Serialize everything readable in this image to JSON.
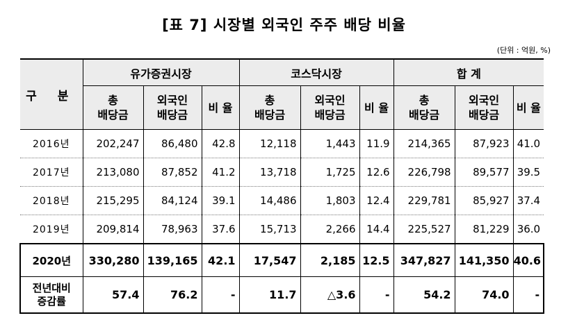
{
  "title": "[표 7] 시장별 외국인 주주 배당 비율",
  "unit": "(단위 : 억원, %)",
  "header": {
    "gubun": "구 분",
    "groups": [
      "유가증권시장",
      "코스닥시장",
      "합 계"
    ],
    "sub_total": [
      "총",
      "배당금"
    ],
    "sub_foreign": [
      "외국인",
      "배당금"
    ],
    "sub_ratio": "비 율"
  },
  "rows": [
    {
      "label": "2016년",
      "v": [
        "202,247",
        "86,480",
        "42.8",
        "12,118",
        "1,443",
        "11.9",
        "214,365",
        "87,923",
        "41.0"
      ]
    },
    {
      "label": "2017년",
      "v": [
        "213,080",
        "87,852",
        "41.2",
        "13,718",
        "1,725",
        "12.6",
        "226,798",
        "89,577",
        "39.5"
      ]
    },
    {
      "label": "2018년",
      "v": [
        "215,295",
        "84,124",
        "39.1",
        "14,486",
        "1,803",
        "12.4",
        "229,781",
        "85,927",
        "37.4"
      ]
    },
    {
      "label": "2019년",
      "v": [
        "209,814",
        "78,963",
        "37.6",
        "15,713",
        "2,266",
        "14.4",
        "225,527",
        "81,229",
        "36.0"
      ]
    },
    {
      "label": "2020년",
      "v": [
        "330,280",
        "139,165",
        "42.1",
        "17,547",
        "2,185",
        "12.5",
        "347,827",
        "141,350",
        "40.6"
      ]
    },
    {
      "label": [
        "전년대비",
        "증감률"
      ],
      "v": [
        "57.4",
        "76.2",
        "-",
        "11.7",
        "△3.6",
        "-",
        "54.2",
        "74.0",
        "-"
      ]
    }
  ]
}
